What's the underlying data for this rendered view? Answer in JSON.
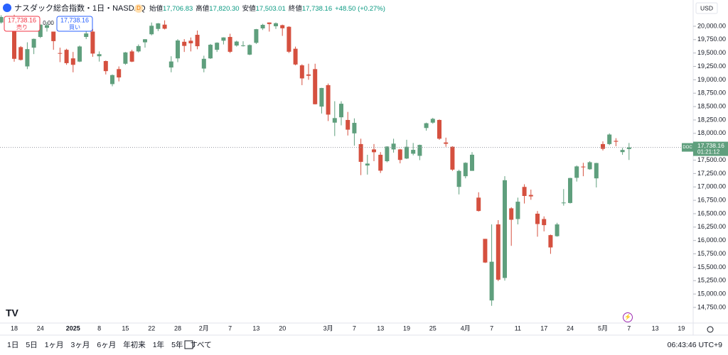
{
  "header": {
    "title": "ナスダック総合指数・1日・NASDAQ",
    "badge": "D",
    "ohlc": [
      {
        "label": "始値",
        "value": "17,706.83"
      },
      {
        "label": "高値",
        "value": "17,820.30"
      },
      {
        "label": "安値",
        "value": "17,503.01"
      },
      {
        "label": "終値",
        "value": "17,738.16"
      }
    ],
    "change": "+48.50 (+0.27%)"
  },
  "trade": {
    "sell_price": "17,738.16",
    "sell": "売り",
    "spread": "0.00",
    "buy_price": "17,738.16",
    "buy": "買い"
  },
  "currency": "USD",
  "price_tag": {
    "badge": "DOC",
    "price": "17,738.16",
    "countdown": "01:21:12"
  },
  "toolbar": {
    "ranges": [
      "1日",
      "5日",
      "1ヶ月",
      "3ヶ月",
      "6ヶ月",
      "年初来",
      "1年",
      "5年",
      "すべて"
    ],
    "clock": "06:43:46 UTC+9"
  },
  "chart_data": {
    "type": "candlestick",
    "up_color": "#5f9f7d",
    "down_color": "#d5503f",
    "grid": false,
    "ylim": [
      14458,
      20490
    ],
    "yticks": [
      {
        "value": 14750,
        "label": "14,750.00"
      },
      {
        "value": 15000,
        "label": "15,000.00"
      },
      {
        "value": 15250,
        "label": "15,250.00"
      },
      {
        "value": 15500,
        "label": "15,500.00"
      },
      {
        "value": 15750,
        "label": "15,750.00"
      },
      {
        "value": 16000,
        "label": "16,000.00"
      },
      {
        "value": 16250,
        "label": "16,250.00"
      },
      {
        "value": 16500,
        "label": "16,500.00"
      },
      {
        "value": 16750,
        "label": "16,750.00"
      },
      {
        "value": 17000,
        "label": "17,000.00"
      },
      {
        "value": 17250,
        "label": "17,250.00"
      },
      {
        "value": 17500,
        "label": "17,500.00"
      },
      {
        "value": 17750,
        "label": "17,750.00"
      },
      {
        "value": 18000,
        "label": "18,000.00"
      },
      {
        "value": 18250,
        "label": "18,250.00"
      },
      {
        "value": 18500,
        "label": "18,500.00"
      },
      {
        "value": 18750,
        "label": "18,750.00"
      },
      {
        "value": 19000,
        "label": "19,000.00"
      },
      {
        "value": 19250,
        "label": "19,250.00"
      },
      {
        "value": 19500,
        "label": "19,500.00"
      },
      {
        "value": 19750,
        "label": "19,750.00"
      },
      {
        "value": 20000,
        "label": "20,000.00"
      }
    ],
    "categories": [
      null,
      null,
      "18",
      null,
      null,
      null,
      "24",
      null,
      null,
      null,
      null,
      "2025",
      null,
      null,
      null,
      "8",
      null,
      null,
      null,
      "15",
      null,
      null,
      null,
      "22",
      null,
      null,
      null,
      "28",
      null,
      null,
      null,
      "2月",
      null,
      null,
      null,
      "7",
      null,
      null,
      null,
      "13",
      null,
      null,
      null,
      "20",
      null,
      null,
      null,
      null,
      null,
      null,
      "3月",
      null,
      null,
      null,
      "7",
      null,
      null,
      null,
      "13",
      null,
      null,
      null,
      "19",
      null,
      null,
      null,
      "25",
      null,
      null,
      null,
      null,
      "4月",
      null,
      null,
      null,
      "7",
      null,
      null,
      null,
      "11",
      null,
      null,
      null,
      "17",
      null,
      null,
      null,
      "24",
      null,
      null,
      null,
      null,
      "5月",
      null,
      null,
      null,
      "7",
      null,
      null,
      null,
      "13",
      null,
      null,
      null,
      "19"
    ],
    "open": [
      20070,
      20110,
      20078,
      19610,
      19250,
      19600,
      19800,
      19970,
      19900,
      19500,
      19560,
      19400,
      19340,
      19800,
      19900,
      19440,
      19350,
      18920,
      19200,
      19300,
      19530,
      19530,
      19700,
      19850,
      19950,
      20030,
      19230,
      19400,
      19710,
      19730,
      19840,
      19210,
      19400,
      19560,
      19730,
      19800,
      19640,
      19640,
      19470,
      19690,
      19960,
      20070,
      20000,
      20020,
      19990,
      19580,
      19270,
      19100,
      19200,
      18500,
      18900,
      18200,
      18300,
      18250,
      18000,
      17800,
      17400,
      17700,
      17600,
      17480,
      17700,
      17700,
      17530,
      17620,
      17580,
      18100,
      18200,
      18250,
      17830,
      17750,
      17000,
      17200,
      17300,
      16800,
      16030,
      14880,
      16300,
      15300,
      16600,
      16400,
      17000,
      16850,
      16500,
      16400,
      16100,
      16080,
      16700,
      16700,
      17170,
      17380,
      17330,
      17160,
      17800,
      17800,
      17860,
      17650,
      17706.83,
      null,
      null,
      null,
      null,
      null,
      null,
      null,
      null
    ],
    "high": [
      20205,
      20120,
      20215,
      19630,
      19700,
      19770,
      20031,
      20075,
      19900,
      19600,
      19580,
      19520,
      19640,
      20010,
      19950,
      19530,
      19360,
      19100,
      19250,
      19520,
      19560,
      19660,
      19760,
      20070,
      20060,
      20110,
      19440,
      19760,
      19760,
      19790,
      19920,
      19450,
      19670,
      19700,
      19795,
      19860,
      19730,
      19720,
      19660,
      19950,
      20045,
      20070,
      20070,
      20030,
      20000,
      19620,
      19290,
      19300,
      19300,
      18850,
      18930,
      18600,
      18600,
      18400,
      18280,
      17900,
      17600,
      17800,
      17650,
      17760,
      17900,
      17710,
      17880,
      17820,
      17790,
      18200,
      18290,
      18260,
      17920,
      17760,
      17320,
      17460,
      17650,
      16900,
      16030,
      16300,
      16380,
      17200,
      16620,
      16800,
      17050,
      16950,
      16550,
      16450,
      16110,
      16330,
      16960,
      17170,
      17400,
      17450,
      17480,
      17450,
      17850,
      18000,
      17910,
      17730,
      17820.3,
      null,
      null,
      null,
      null,
      null,
      null,
      null,
      null
    ],
    "low": [
      20050,
      20010,
      19338,
      19360,
      19200,
      19480,
      19780,
      19900,
      19560,
      19330,
      19280,
      19140,
      19330,
      19760,
      19430,
      19340,
      19100,
      18880,
      18970,
      19280,
      19330,
      19510,
      19600,
      19830,
      19910,
      19940,
      19140,
      19330,
      19520,
      19530,
      19570,
      19140,
      19390,
      19520,
      19660,
      19500,
      19620,
      19620,
      19460,
      19670,
      19930,
      19900,
      19950,
      19820,
      19500,
      19270,
      18900,
      19000,
      18540,
      18370,
      18230,
      17950,
      18150,
      17960,
      17770,
      17220,
      17230,
      17480,
      17260,
      17460,
      17640,
      17440,
      17520,
      17590,
      17500,
      18050,
      18180,
      17880,
      17750,
      17300,
      16860,
      17160,
      17300,
      16540,
      15580,
      14780,
      15240,
      15250,
      15900,
      16300,
      16690,
      16760,
      16070,
      16170,
      15750,
      16070,
      16650,
      16690,
      17100,
      17200,
      17320,
      16990,
      17680,
      17780,
      17760,
      17600,
      17503.01,
      null,
      null,
      null,
      null,
      null,
      null,
      null,
      null
    ],
    "close": [
      20173,
      20109,
      19392,
      19372,
      19573,
      19764,
      20031,
      20020,
      19722,
      19487,
      19311,
      19280,
      19622,
      19865,
      19490,
      19479,
      19162,
      19088,
      19044,
      19511,
      19339,
      19630,
      19757,
      20009,
      20054,
      19954,
      19342,
      19734,
      19633,
      19681,
      19627,
      19392,
      19654,
      19692,
      19791,
      19523,
      19714,
      19643,
      19649,
      19945,
      20026,
      20041,
      20056,
      19962,
      19524,
      19286,
      19026,
      19075,
      18544,
      18847,
      18350,
      18285,
      18553,
      18069,
      18196,
      17468,
      17436,
      17648,
      17303,
      17754,
      17808,
      17504,
      17750,
      17692,
      17784,
      18189,
      18271,
      17900,
      17805,
      17323,
      17299,
      17450,
      17601,
      16551,
      15588,
      15603,
      15268,
      17125,
      16387,
      16724,
      16831,
      16823,
      16307,
      16286,
      15870,
      16300,
      16708,
      17166,
      17383,
      17366,
      17461,
      17446,
      17711,
      17978,
      17844,
      17690,
      17738.16,
      null,
      null,
      null,
      null,
      null,
      null,
      null,
      null
    ]
  }
}
